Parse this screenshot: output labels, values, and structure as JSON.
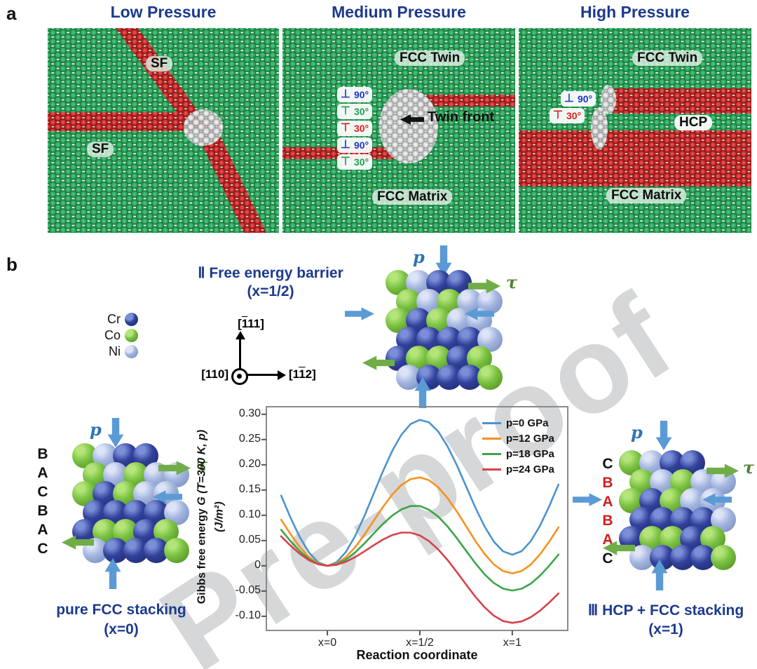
{
  "colors": {
    "navy_title": "#1c3a8e",
    "atom_green": "#2aa257",
    "atom_red": "#c22525",
    "atom_grey": "#d2d2d2",
    "cr_blue": "#32419b",
    "co_green": "#79c142",
    "ni_lightblue": "#a3b5de",
    "arrow_blue": "#5b9bd5",
    "arrow_green": "#70ad47",
    "watermark_grey": "#d5d7d9"
  },
  "watermark_text": "Pre-proof",
  "panel_a": {
    "label": "a",
    "panels": [
      {
        "title": "Low Pressure",
        "sf_upper": "SF",
        "sf_lower": "SF"
      },
      {
        "title": "Medium Pressure",
        "fcc_twin": "FCC Twin",
        "twin_front": "Twin front",
        "fcc_matrix": "FCC Matrix",
        "dislocations": [
          {
            "symbol": "⊥",
            "angle": "90°",
            "color": "blue"
          },
          {
            "symbol": "⊤",
            "angle": "30°",
            "color": "green"
          },
          {
            "symbol": "⊤",
            "angle": "30°",
            "color": "red"
          },
          {
            "symbol": "⊥",
            "angle": "90°",
            "color": "blue"
          },
          {
            "symbol": "⊤",
            "angle": "30°",
            "color": "green"
          }
        ]
      },
      {
        "title": "High Pressure",
        "fcc_twin": "FCC Twin",
        "hcp": "HCP",
        "fcc_matrix": "FCC Matrix",
        "dislocations": [
          {
            "symbol": "⊥",
            "angle": "90°",
            "color": "blue"
          },
          {
            "symbol": "⊤",
            "angle": "30°",
            "color": "red"
          }
        ]
      }
    ]
  },
  "panel_b": {
    "label": "b",
    "element_legend": [
      {
        "element": "Cr",
        "code": "c"
      },
      {
        "element": "Co",
        "code": "o"
      },
      {
        "element": "Ni",
        "code": "n"
      }
    ],
    "axes": {
      "up_pre": "[",
      "up_ov": "1",
      "up_post": "11]",
      "out": "[110]",
      "right_pre": "[1",
      "right_ov": "1",
      "right_post": "2]"
    },
    "titles": {
      "ii_line1": "Ⅱ Free energy barrier",
      "ii_line2": "(x=1/2)",
      "left_line1": "pure FCC stacking",
      "left_line2": "(x=0)",
      "right_line1": "Ⅲ HCP + FCC stacking",
      "right_line2": "(x=1)"
    },
    "arrow_labels": {
      "p": "p",
      "tau": "τ"
    },
    "stack_left": [
      {
        "ch": "B",
        "red": false
      },
      {
        "ch": "A",
        "red": false
      },
      {
        "ch": "C",
        "red": false
      },
      {
        "ch": "B",
        "red": false
      },
      {
        "ch": "A",
        "red": false
      },
      {
        "ch": "C",
        "red": false
      }
    ],
    "stack_right": [
      {
        "ch": "C",
        "red": false
      },
      {
        "ch": "B",
        "red": true
      },
      {
        "ch": "A",
        "red": true
      },
      {
        "ch": "B",
        "red": true
      },
      {
        "ch": "A",
        "red": true
      },
      {
        "ch": "C",
        "red": false
      }
    ],
    "cluster_rows": [
      "o n c c",
      "o n o n n",
      "o c o n n",
      "c c c c n",
      "c o o c o",
      "n c c c o"
    ]
  },
  "chart_data": {
    "type": "line",
    "xlabel": "Reaction coordinate",
    "ylabel_plain": "Gibbs free energy  ",
    "ylabel_italic": "G (T=300 K, p)",
    "ylabel_line2": "(J/m²)",
    "xlim": [
      -0.33,
      1.3
    ],
    "ylim": [
      -0.128,
      0.315
    ],
    "grid": false,
    "legend_position": "upper right",
    "x_ticks": [
      {
        "v": 0,
        "label": "x=0"
      },
      {
        "v": 0.5,
        "label": "x=1/2"
      },
      {
        "v": 1,
        "label": "x=1"
      }
    ],
    "y_ticks": [
      {
        "v": 0.3,
        "label": "0.30"
      },
      {
        "v": 0.25,
        "label": "0.25"
      },
      {
        "v": 0.2,
        "label": "0.20"
      },
      {
        "v": 0.15,
        "label": "0.15"
      },
      {
        "v": 0.1,
        "label": "0.10"
      },
      {
        "v": 0.05,
        "label": "0.05"
      },
      {
        "v": 0,
        "label": "0"
      },
      {
        "v": -0.05,
        "label": "-0.05"
      },
      {
        "v": -0.1,
        "label": "-0.10"
      }
    ],
    "series": [
      {
        "name": "p=0 GPa",
        "color": "#4d93cd",
        "barrier_at_half": 0.289,
        "value_at_x1": 0.022,
        "points": [
          [
            -0.25,
            0.139
          ],
          [
            -0.2,
            0.0959
          ],
          [
            -0.15,
            0.0573
          ],
          [
            -0.1,
            0.0266
          ],
          [
            -0.05,
            0.0068
          ],
          [
            0,
            0
          ],
          [
            0.05,
            0.007
          ],
          [
            0.1,
            0.0272
          ],
          [
            0.15,
            0.0586
          ],
          [
            0.2,
            0.0982
          ],
          [
            0.25,
            0.1424
          ],
          [
            0.3,
            0.1868
          ],
          [
            0.35,
            0.2269
          ],
          [
            0.4,
            0.2594
          ],
          [
            0.45,
            0.2807
          ],
          [
            0.5,
            0.289
          ],
          [
            0.55,
            0.284
          ],
          [
            0.6,
            0.2659
          ],
          [
            0.65,
            0.2365
          ],
          [
            0.7,
            0.1994
          ],
          [
            0.75,
            0.1576
          ],
          [
            0.8,
            0.1156
          ],
          [
            0.85,
            0.0779
          ],
          [
            0.9,
            0.0479
          ],
          [
            0.95,
            0.0287
          ],
          [
            1,
            0.022
          ],
          [
            1.05,
            0.0288
          ],
          [
            1.1,
            0.0486
          ],
          [
            1.15,
            0.0793
          ],
          [
            1.2,
            0.1179
          ],
          [
            1.25,
            0.161
          ]
        ]
      },
      {
        "name": "p=12 GPa",
        "color": "#f6921e",
        "barrier_at_half": 0.175,
        "value_at_x1": -0.015,
        "points": [
          [
            -0.25,
            0.0913
          ],
          [
            -0.2,
            0.063
          ],
          [
            -0.15,
            0.0376
          ],
          [
            -0.1,
            0.0174
          ],
          [
            -0.05,
            0.0045
          ],
          [
            0,
            0
          ],
          [
            0.05,
            0.0044
          ],
          [
            0.1,
            0.017
          ],
          [
            0.15,
            0.0367
          ],
          [
            0.2,
            0.0614
          ],
          [
            0.25,
            0.0889
          ],
          [
            0.3,
            0.1163
          ],
          [
            0.35,
            0.1407
          ],
          [
            0.4,
            0.1599
          ],
          [
            0.45,
            0.1718
          ],
          [
            0.5,
            0.175
          ],
          [
            0.55,
            0.1695
          ],
          [
            0.6,
            0.1554
          ],
          [
            0.65,
            0.1341
          ],
          [
            0.7,
            0.1078
          ],
          [
            0.75,
            0.0786
          ],
          [
            0.8,
            0.0495
          ],
          [
            0.85,
            0.0235
          ],
          [
            0.9,
            0.0028
          ],
          [
            0.95,
            -0.0104
          ],
          [
            1,
            -0.015
          ],
          [
            1.05,
            -0.0105
          ],
          [
            1.1,
            0.0024
          ],
          [
            1.15,
            0.0226
          ],
          [
            1.2,
            0.048
          ],
          [
            1.25,
            0.0763
          ]
        ]
      },
      {
        "name": "p=18 GPa",
        "color": "#3aa648",
        "barrier_at_half": 0.118,
        "value_at_x1": -0.049,
        "points": [
          [
            -0.25,
            0.0713
          ],
          [
            -0.2,
            0.0492
          ],
          [
            -0.15,
            0.0294
          ],
          [
            -0.1,
            0.0136
          ],
          [
            -0.05,
            0.0035
          ],
          [
            0,
            0
          ],
          [
            0.05,
            0.0031
          ],
          [
            0.1,
            0.0122
          ],
          [
            0.15,
            0.0264
          ],
          [
            0.2,
            0.0441
          ],
          [
            0.25,
            0.0636
          ],
          [
            0.3,
            0.0828
          ],
          [
            0.35,
            0.0993
          ],
          [
            0.4,
            0.1117
          ],
          [
            0.45,
            0.1183
          ],
          [
            0.5,
            0.1185
          ],
          [
            0.55,
            0.111
          ],
          [
            0.6,
            0.0972
          ],
          [
            0.65,
            0.078
          ],
          [
            0.7,
            0.0549
          ],
          [
            0.75,
            0.0299
          ],
          [
            0.8,
            0.0053
          ],
          [
            0.85,
            -0.0167
          ],
          [
            0.9,
            -0.034
          ],
          [
            0.95,
            -0.0452
          ],
          [
            1,
            -0.049
          ],
          [
            1.05,
            -0.0455
          ],
          [
            1.1,
            -0.0354
          ],
          [
            1.15,
            -0.0196
          ],
          [
            1.2,
            0.0002
          ],
          [
            1.25,
            0.0223
          ]
        ]
      },
      {
        "name": "p=24 GPa",
        "color": "#d8414a",
        "barrier_at_half": 0.06,
        "value_at_x1": -0.113,
        "points": [
          [
            -0.25,
            0.0583
          ],
          [
            -0.2,
            0.0402
          ],
          [
            -0.15,
            0.024
          ],
          [
            -0.1,
            0.0111
          ],
          [
            -0.05,
            0.0029
          ],
          [
            0,
            0
          ],
          [
            0.05,
            0.002
          ],
          [
            0.1,
            0.008
          ],
          [
            0.15,
            0.0171
          ],
          [
            0.2,
            0.0285
          ],
          [
            0.25,
            0.0406
          ],
          [
            0.3,
            0.0519
          ],
          [
            0.35,
            0.0607
          ],
          [
            0.4,
            0.0657
          ],
          [
            0.45,
            0.0657
          ],
          [
            0.5,
            0.06
          ],
          [
            0.55,
            0.0488
          ],
          [
            0.6,
            0.0322
          ],
          [
            0.65,
            0.0114
          ],
          [
            0.7,
            -0.0123
          ],
          [
            0.75,
            -0.0369
          ],
          [
            0.8,
            -0.061
          ],
          [
            0.85,
            -0.0821
          ],
          [
            0.9,
            -0.0987
          ],
          [
            0.95,
            -0.1094
          ],
          [
            1,
            -0.113
          ],
          [
            1.05,
            -0.1102
          ],
          [
            1.1,
            -0.1019
          ],
          [
            1.15,
            -0.089
          ],
          [
            1.2,
            -0.0727
          ],
          [
            1.25,
            -0.0547
          ]
        ]
      }
    ]
  }
}
